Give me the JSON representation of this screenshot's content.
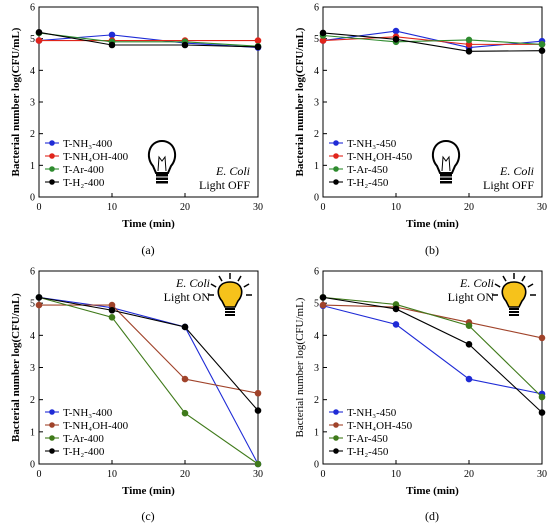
{
  "chart_data": [
    {
      "type": "line",
      "panel_label": "(a)",
      "xlabel": "Time (min)",
      "ylabel": "Bacterial number log(CFU/mL)",
      "ylabel_bold": true,
      "x": [
        0,
        10,
        20,
        30
      ],
      "xlim": [
        0,
        30
      ],
      "ylim": [
        0,
        6
      ],
      "xticks": [
        "0",
        "10",
        "20",
        "30"
      ],
      "yticks": [
        "0",
        "1",
        "2",
        "3",
        "4",
        "5",
        "6"
      ],
      "series": [
        {
          "name": "T-NH₃-400",
          "color": "#1f2bd6",
          "values": [
            4.94,
            5.12,
            4.86,
            4.72
          ]
        },
        {
          "name": "T-NH₄OH-400",
          "color": "#e0251b",
          "values": [
            4.94,
            4.94,
            4.94,
            4.94
          ]
        },
        {
          "name": "T-Ar-400",
          "color": "#2e8b2e",
          "values": [
            5.18,
            4.9,
            4.9,
            4.76
          ]
        },
        {
          "name": "T-H₂-400",
          "color": "#000000",
          "values": [
            5.2,
            4.8,
            4.8,
            4.74
          ]
        }
      ],
      "legend_position": "lower-left",
      "annotation": {
        "organism": "E. Coli",
        "light": "Light OFF",
        "bulb": "bulb-off-icon"
      }
    },
    {
      "type": "line",
      "panel_label": "(b)",
      "xlabel": "Time (min)",
      "ylabel": "Bacterial number log(CFU/mL)",
      "ylabel_bold": true,
      "x": [
        0,
        10,
        20,
        30
      ],
      "xlim": [
        0,
        30
      ],
      "ylim": [
        0,
        6
      ],
      "xticks": [
        "0",
        "10",
        "20",
        "30"
      ],
      "yticks": [
        "0",
        "1",
        "2",
        "3",
        "4",
        "5",
        "6"
      ],
      "series": [
        {
          "name": "T-NH₃-450",
          "color": "#1f2bd6",
          "values": [
            4.94,
            5.24,
            4.72,
            4.92
          ]
        },
        {
          "name": "T-NH₄OH-450",
          "color": "#e0251b",
          "values": [
            4.94,
            5.06,
            4.82,
            4.82
          ]
        },
        {
          "name": "T-Ar-450",
          "color": "#2e8b2e",
          "values": [
            5.1,
            4.9,
            4.96,
            4.82
          ]
        },
        {
          "name": "T-H₂-450",
          "color": "#000000",
          "values": [
            5.18,
            4.98,
            4.6,
            4.62
          ]
        }
      ],
      "legend_position": "lower-left",
      "annotation": {
        "organism": "E. Coli",
        "light": "Light OFF",
        "bulb": "bulb-off-icon"
      }
    },
    {
      "type": "line",
      "panel_label": "(c)",
      "xlabel": "Time (min)",
      "ylabel": "Bacterial number log(CFU/mL)",
      "ylabel_bold": true,
      "x": [
        0,
        10,
        20,
        30
      ],
      "xlim": [
        0,
        30
      ],
      "ylim": [
        0,
        6
      ],
      "xticks": [
        "0",
        "10",
        "20",
        "30"
      ],
      "yticks": [
        "0",
        "1",
        "2",
        "3",
        "4",
        "5",
        "6"
      ],
      "series": [
        {
          "name": "T-NH₃-400",
          "color": "#1f2bd6",
          "values": [
            5.18,
            4.86,
            4.26,
            0.0
          ]
        },
        {
          "name": "T-NH₄OH-400",
          "color": "#a0432a",
          "values": [
            4.94,
            4.94,
            2.64,
            2.2
          ]
        },
        {
          "name": "T-Ar-400",
          "color": "#3f7a1a",
          "values": [
            5.18,
            4.56,
            1.58,
            0.0
          ]
        },
        {
          "name": "T-H₂-400",
          "color": "#000000",
          "values": [
            5.18,
            4.78,
            4.26,
            1.66
          ]
        }
      ],
      "legend_position": "lower-left",
      "annotation": {
        "organism": "E. Coli",
        "light": "Light ON",
        "bulb": "bulb-on-icon"
      }
    },
    {
      "type": "line",
      "panel_label": "(d)",
      "xlabel": "Time (min)",
      "ylabel": "Bacterial number log(CFU/mL)",
      "ylabel_bold": false,
      "x": [
        0,
        10,
        20,
        30
      ],
      "xlim": [
        0,
        30
      ],
      "ylim": [
        0,
        6
      ],
      "xticks": [
        "0",
        "10",
        "20",
        "30"
      ],
      "yticks": [
        "0",
        "1",
        "2",
        "3",
        "4",
        "5",
        "6"
      ],
      "series": [
        {
          "name": "T-NH₃-450",
          "color": "#1f2bd6",
          "values": [
            4.92,
            4.34,
            2.64,
            2.18
          ]
        },
        {
          "name": "T-NH₄OH-450",
          "color": "#a0432a",
          "values": [
            4.94,
            4.88,
            4.4,
            3.92
          ]
        },
        {
          "name": "T-Ar-450",
          "color": "#3f7a1a",
          "values": [
            5.18,
            4.96,
            4.3,
            2.08
          ]
        },
        {
          "name": "T-H₂-450",
          "color": "#000000",
          "values": [
            5.18,
            4.82,
            3.72,
            1.6
          ]
        }
      ],
      "legend_position": "lower-left",
      "annotation": {
        "organism": "E. Coli",
        "light": "Light ON",
        "bulb": "bulb-on-icon"
      }
    }
  ]
}
